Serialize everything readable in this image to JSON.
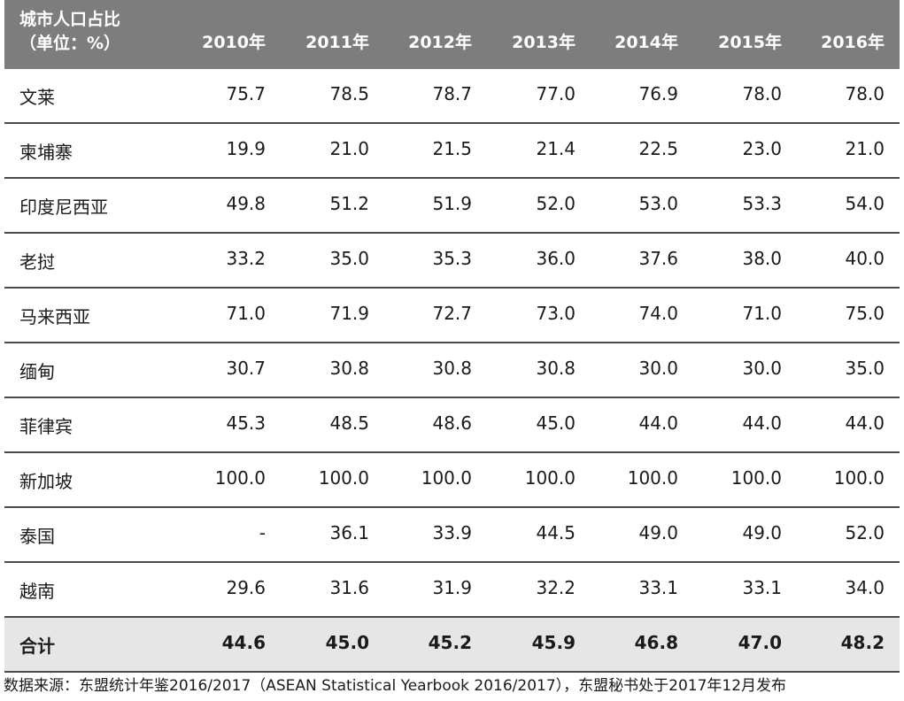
{
  "header": {
    "corner_line1": "城市人口占比",
    "corner_line2": "（单位：%）",
    "years": [
      "2010年",
      "2011年",
      "2012年",
      "2013年",
      "2014年",
      "2015年",
      "2016年"
    ]
  },
  "rows": [
    {
      "name": "文莱",
      "values": [
        "75.7",
        "78.5",
        "78.7",
        "77.0",
        "76.9",
        "78.0",
        "78.0"
      ]
    },
    {
      "name": "柬埔寨",
      "values": [
        "19.9",
        "21.0",
        "21.5",
        "21.4",
        "22.5",
        "23.0",
        "21.0"
      ]
    },
    {
      "name": "印度尼西亚",
      "values": [
        "49.8",
        "51.2",
        "51.9",
        "52.0",
        "53.0",
        "53.3",
        "54.0"
      ]
    },
    {
      "name": "老挝",
      "values": [
        "33.2",
        "35.0",
        "35.3",
        "36.0",
        "37.6",
        "38.0",
        "40.0"
      ]
    },
    {
      "name": "马来西亚",
      "values": [
        "71.0",
        "71.9",
        "72.7",
        "73.0",
        "74.0",
        "71.0",
        "75.0"
      ]
    },
    {
      "name": "缅甸",
      "values": [
        "30.7",
        "30.8",
        "30.8",
        "30.8",
        "30.0",
        "30.0",
        "35.0"
      ]
    },
    {
      "name": "菲律宾",
      "values": [
        "45.3",
        "48.5",
        "48.6",
        "45.0",
        "44.0",
        "44.0",
        "44.0"
      ]
    },
    {
      "name": "新加坡",
      "values": [
        "100.0",
        "100.0",
        "100.0",
        "100.0",
        "100.0",
        "100.0",
        "100.0"
      ]
    },
    {
      "name": "泰国",
      "values": [
        "-",
        "36.1",
        "33.9",
        "44.5",
        "49.0",
        "49.0",
        "52.0"
      ]
    },
    {
      "name": "越南",
      "values": [
        "29.6",
        "31.6",
        "31.9",
        "32.2",
        "33.1",
        "33.1",
        "34.0"
      ]
    }
  ],
  "total": {
    "name": "合计",
    "values": [
      "44.6",
      "45.0",
      "45.2",
      "45.9",
      "46.8",
      "47.0",
      "48.2"
    ]
  },
  "source_note": "数据来源：东盟统计年鉴2016/2017（ASEAN Statistical Yearbook 2016/2017），东盟秘书处于2017年12月发布",
  "colors": {
    "header_bg": "#7d7d7d",
    "total_bg": "#e6e6e6",
    "rule": "#4a4a4a"
  }
}
